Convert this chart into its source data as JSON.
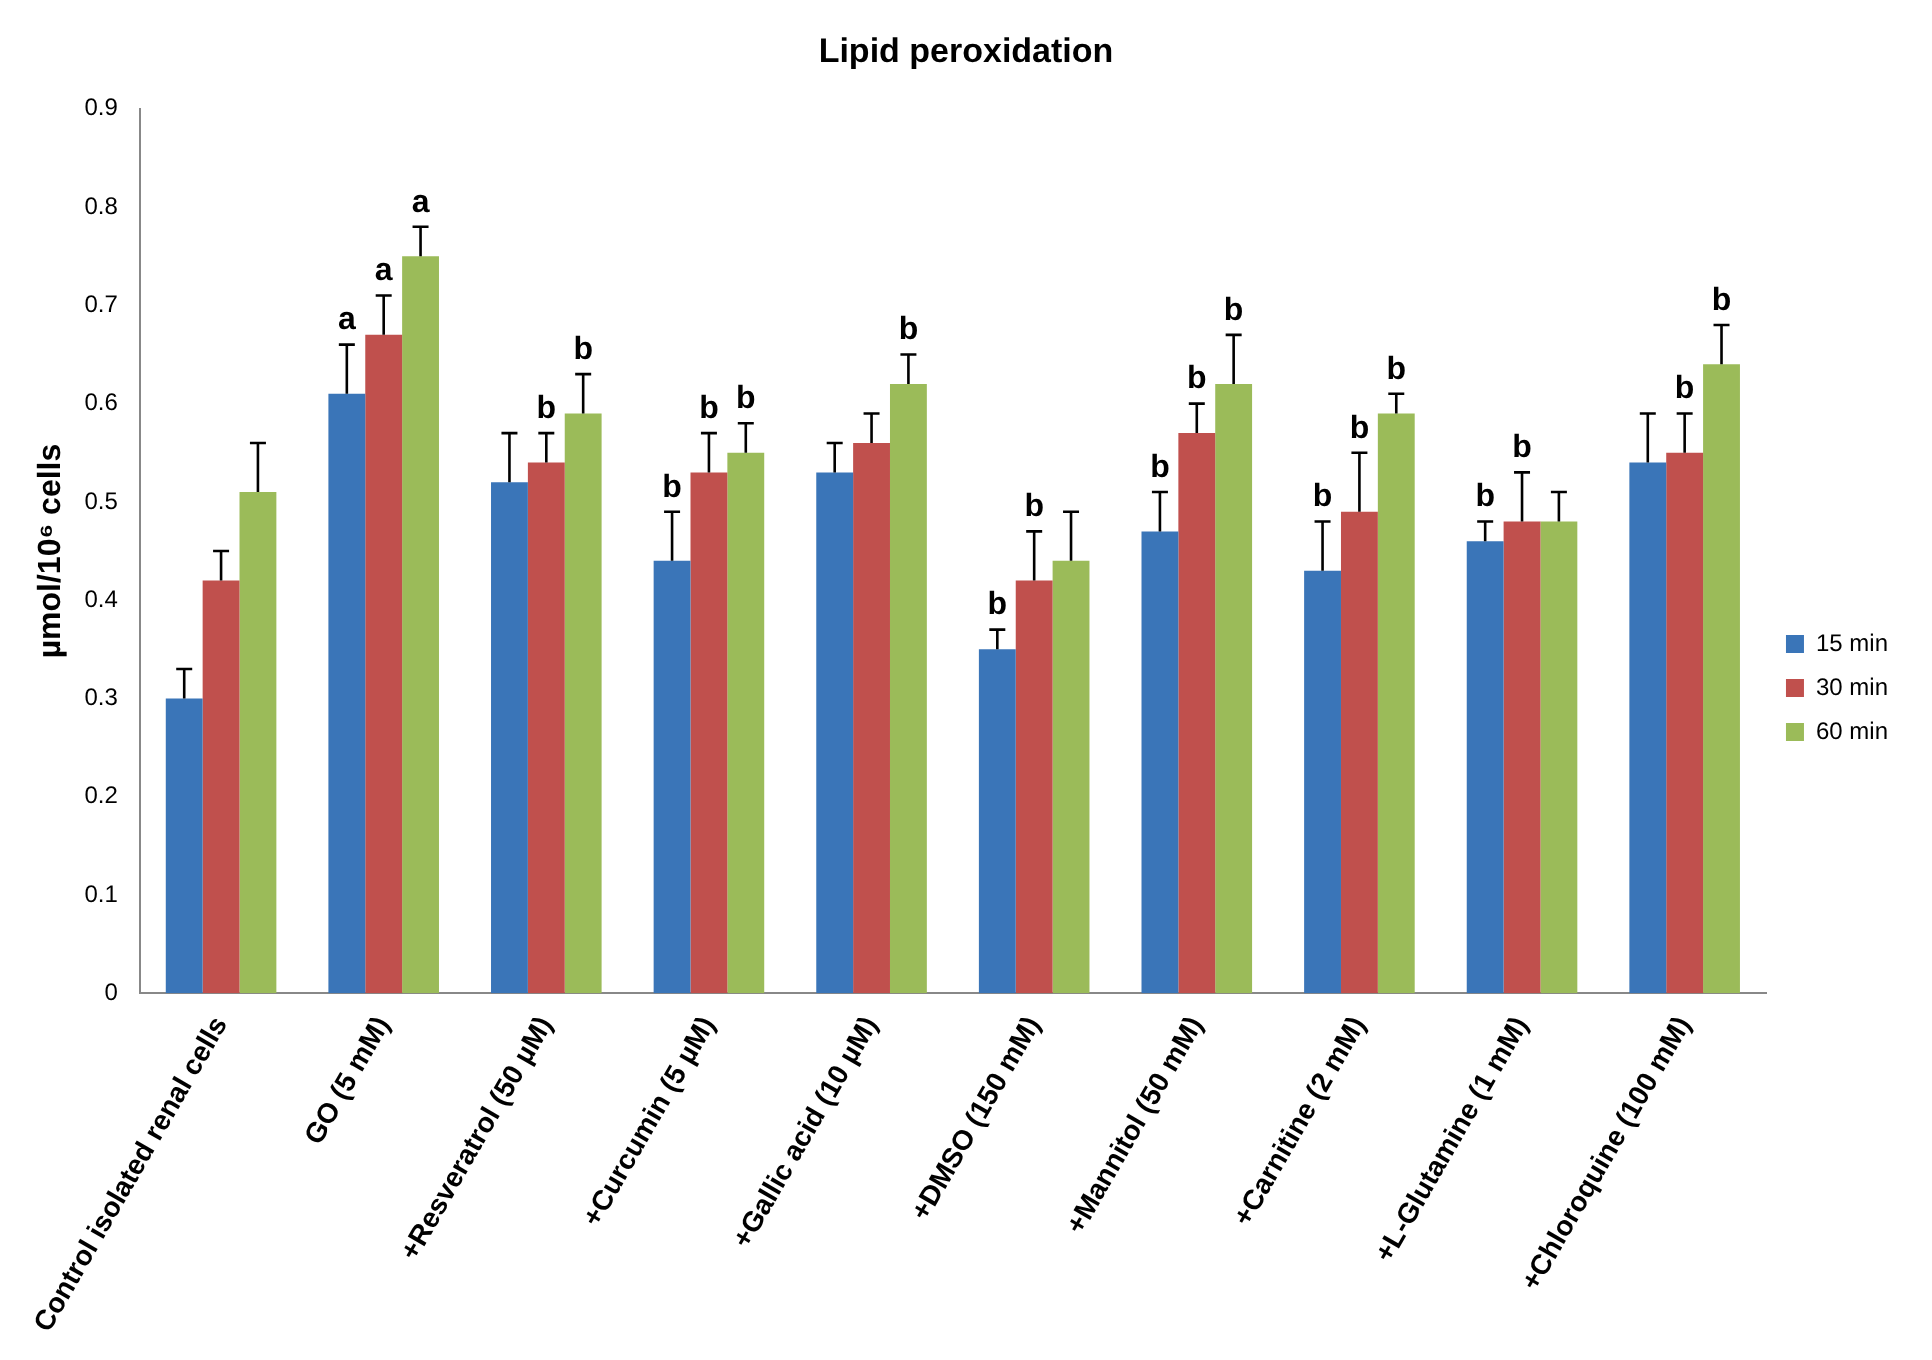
{
  "chart_data": {
    "type": "bar",
    "title": "Lipid peroxidation",
    "ylabel": "µmol/10⁶ cells",
    "categories": [
      "Control isolated renal cells",
      "GO (5 mM)",
      "+Resveratrol (50 µM)",
      "+Curcumin (5 µM)",
      "+Gallic acid (10 µM)",
      "+DMSO (150 mM)",
      "+Mannitol (50 mM)",
      "+Carnitine (2 mM)",
      "+L-Glutamine (1 mM)",
      "+Chloroquine (100 mM)"
    ],
    "series": [
      {
        "name": "15 min",
        "color": "#3a75b8",
        "values": [
          0.3,
          0.61,
          0.52,
          0.44,
          0.53,
          0.35,
          0.47,
          0.43,
          0.46,
          0.54
        ],
        "errors": [
          [
            0.3,
            0.33
          ],
          [
            0.61,
            0.66
          ],
          [
            0.52,
            0.57
          ],
          [
            0.44,
            0.49
          ],
          [
            0.53,
            0.56
          ],
          [
            0.35,
            0.37
          ],
          [
            0.47,
            0.51
          ],
          [
            0.43,
            0.48
          ],
          [
            0.46,
            0.48
          ],
          [
            0.54,
            0.59
          ]
        ],
        "value_labels": [
          null,
          "a",
          null,
          "b",
          null,
          "b",
          "b",
          "b",
          "b",
          null
        ]
      },
      {
        "name": "30 min",
        "color": "#c0504d",
        "values": [
          0.42,
          0.67,
          0.54,
          0.53,
          0.56,
          0.42,
          0.57,
          0.49,
          0.48,
          0.55
        ],
        "errors": [
          [
            0.42,
            0.45
          ],
          [
            0.67,
            0.71
          ],
          [
            0.54,
            0.57
          ],
          [
            0.53,
            0.57
          ],
          [
            0.56,
            0.59
          ],
          [
            0.42,
            0.47
          ],
          [
            0.57,
            0.6
          ],
          [
            0.49,
            0.55
          ],
          [
            0.48,
            0.53
          ],
          [
            0.55,
            0.59
          ]
        ],
        "value_labels": [
          null,
          "a",
          "b",
          "b",
          null,
          "b",
          "b",
          "b",
          "b",
          "b"
        ]
      },
      {
        "name": "60 min",
        "color": "#9bbb59",
        "values": [
          0.51,
          0.75,
          0.59,
          0.55,
          0.62,
          0.44,
          0.62,
          0.59,
          0.48,
          0.64
        ],
        "errors": [
          [
            0.51,
            0.56
          ],
          [
            0.75,
            0.78
          ],
          [
            0.59,
            0.63
          ],
          [
            0.55,
            0.58
          ],
          [
            0.62,
            0.65
          ],
          [
            0.44,
            0.49
          ],
          [
            0.62,
            0.67
          ],
          [
            0.59,
            0.61
          ],
          [
            0.48,
            0.51
          ],
          [
            0.64,
            0.68
          ]
        ],
        "value_labels": [
          null,
          "a",
          "b",
          "b",
          "b",
          null,
          "b",
          "b",
          null,
          "b"
        ]
      }
    ],
    "ylim": [
      0,
      0.9
    ],
    "yticks": [
      0,
      0.1,
      0.2,
      0.3,
      0.4,
      0.5,
      0.6,
      0.7,
      0.8,
      0.9
    ],
    "grid": false,
    "legend": "right"
  }
}
